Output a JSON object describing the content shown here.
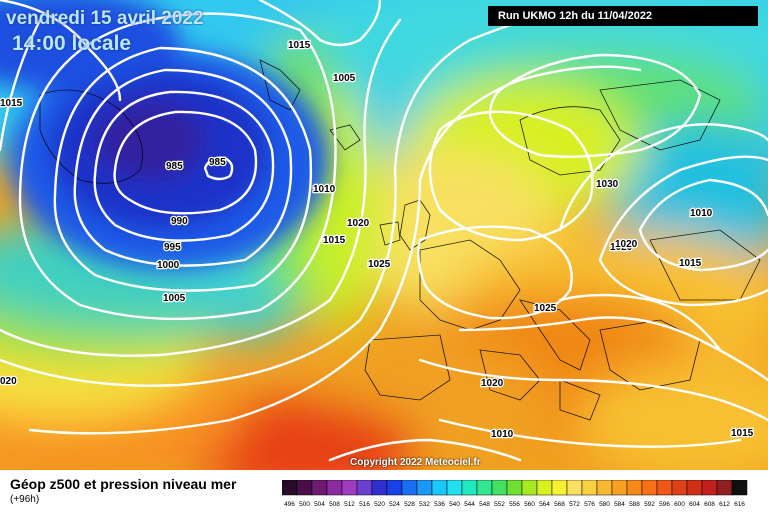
{
  "header": {
    "valid_date": "vendredi 15 avril 2022",
    "valid_time": "14:00 locale",
    "run_info": "Run UKMO 12h du 11/04/2022"
  },
  "copyright": "Copyright 2022 Meteociel.fr",
  "footer": {
    "title": "Géop z500 et pression niveau mer",
    "subtitle": "(+96h)"
  },
  "isobar_labels": [
    "1015",
    "1005",
    "1015",
    "985",
    "985",
    "990",
    "995",
    "1000",
    "1005",
    "1010",
    "1015",
    "1020",
    "1025",
    "1030",
    "1020",
    "1010",
    "1015",
    "1025",
    "1020",
    "1010",
    "1015",
    "020",
    "1020"
  ],
  "scale": {
    "values": [
      "496",
      "500",
      "504",
      "508",
      "512",
      "516",
      "520",
      "524",
      "528",
      "532",
      "536",
      "540",
      "544",
      "548",
      "552",
      "556",
      "560",
      "564",
      "568",
      "572",
      "576",
      "580",
      "584",
      "588",
      "592",
      "596",
      "600",
      "604",
      "608",
      "612",
      "616"
    ],
    "colors": [
      "#2a0a2a",
      "#4a0f4a",
      "#6e1a6e",
      "#8e2aa0",
      "#a03ac0",
      "#6a3fd0",
      "#2f2fd0",
      "#1a40e8",
      "#1a6ef0",
      "#1a9af8",
      "#1ac8ff",
      "#20e0f0",
      "#20e8c0",
      "#30e890",
      "#40e060",
      "#70e030",
      "#a8e820",
      "#d8f020",
      "#f8f030",
      "#f8e060",
      "#f8d040",
      "#f8b830",
      "#f8a020",
      "#f88818",
      "#f87018",
      "#f05818",
      "#e04018",
      "#d03018",
      "#c02020",
      "#902020",
      "#101010"
    ]
  }
}
